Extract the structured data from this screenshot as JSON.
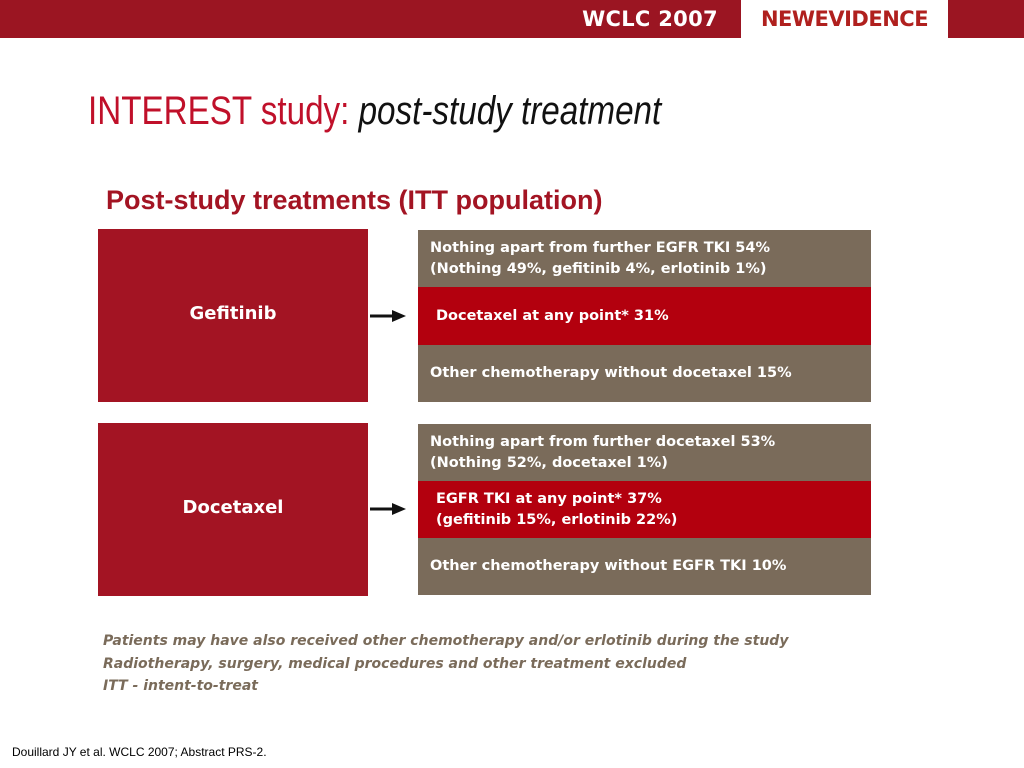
{
  "header": {
    "conference": "WCLC 2007",
    "logo_text": "NEWEVIDENCE",
    "bar_color": "#9b1522"
  },
  "title": {
    "main": "INTEREST study: ",
    "emphasis": "post-study treatment"
  },
  "subtitle": "Post-study treatments (ITT population)",
  "groups": [
    {
      "drug": "Gefitinib",
      "outcomes": [
        {
          "lines": [
            "Nothing apart from further EGFR TKI 54%",
            "(Nothing 49%, gefitinib 4%, erlotinib 1%)"
          ],
          "color": "#7a6b5a"
        },
        {
          "lines": [
            "Docetaxel at any point* 31%"
          ],
          "color": "#b3000e"
        },
        {
          "lines": [
            "Other chemotherapy without docetaxel 15%"
          ],
          "color": "#7a6b5a"
        }
      ]
    },
    {
      "drug": "Docetaxel",
      "outcomes": [
        {
          "lines": [
            "Nothing apart from further docetaxel 53%",
            "(Nothing 52%, docetaxel 1%)"
          ],
          "color": "#7a6b5a"
        },
        {
          "lines": [
            "EGFR TKI at any point* 37%",
            "(gefitinib 15%, erlotinib 22%)"
          ],
          "color": "#b3000e"
        },
        {
          "lines": [
            "Other chemotherapy without EGFR TKI 10%"
          ],
          "color": "#7a6b5a"
        }
      ]
    }
  ],
  "footnotes": [
    "Patients may have also received other chemotherapy and/or erlotinib during the study",
    "Radiotherapy, surgery, medical procedures and other treatment excluded",
    "ITT - intent-to-treat"
  ],
  "citation": "Douillard JY et al. WCLC 2007; Abstract PRS-2.",
  "colors": {
    "accent_red": "#a31423",
    "outcome_red": "#b3000e",
    "outcome_grey": "#7a6b5a",
    "title_red": "#c0102a"
  }
}
